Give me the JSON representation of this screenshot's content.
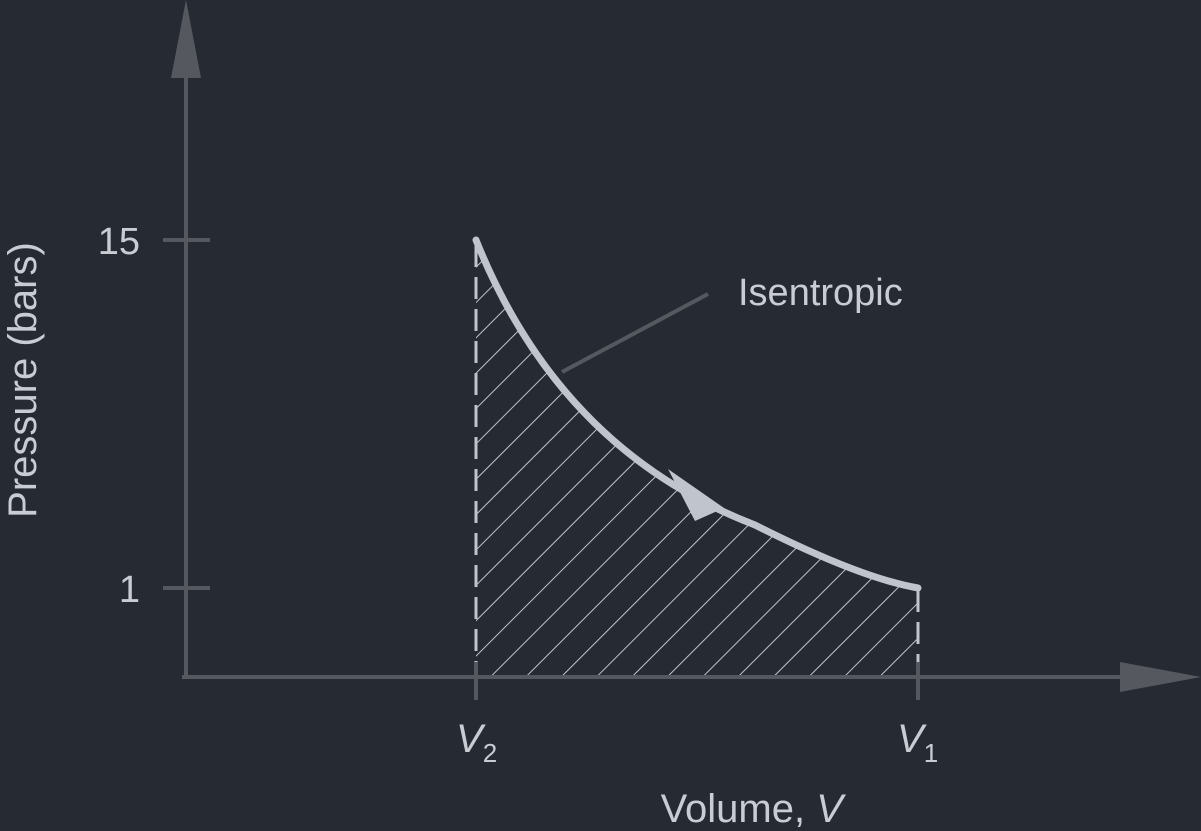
{
  "colors": {
    "background": "#262a33",
    "axis": "#55595f",
    "curve": "#c0c4cc",
    "hatch": "#c0c4cc",
    "text": "#c9ccd3"
  },
  "axes": {
    "y_title": "Pressure (bars)",
    "x_title_prefix": "Volume, ",
    "x_title_var": "V",
    "y_ticks": [
      "15",
      "1"
    ]
  },
  "points": {
    "v2_symbol": "V",
    "v2_sub": "2",
    "v1_symbol": "V",
    "v1_sub": "1"
  },
  "process": {
    "label": "Isentropic",
    "p_high": 15,
    "p_low": 1,
    "direction": "expansion from V2 to V1",
    "region": "hatched area under the curve between V2 and V1"
  }
}
